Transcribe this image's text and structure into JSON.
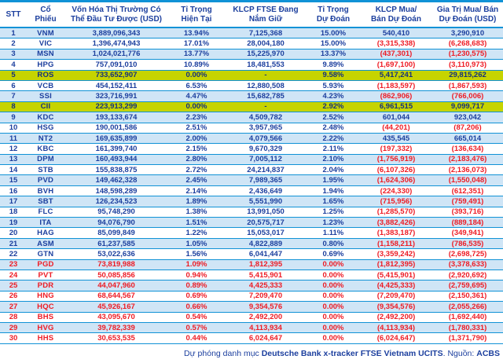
{
  "report": {
    "colors": {
      "text_blue": "#1c3f9e",
      "text_red": "#ee1c25",
      "grid_line_blue": "#1092d6",
      "row_alt_blue": "#cfe5f6",
      "highlight_yellow": "#c6d400"
    },
    "table": {
      "columns": [
        {
          "key": "stt",
          "label": "STT"
        },
        {
          "key": "ticker",
          "label": "Cổ\nPhiếu"
        },
        {
          "key": "market_cap",
          "label": "Vốn Hóa Thị Trường Có\nThể Đầu Tư Được (USD)"
        },
        {
          "key": "current_weight",
          "label": "Tỉ Trọng\nHiện Tại"
        },
        {
          "key": "shares_held",
          "label": "KLCP FTSE Đang\nNắm Giữ"
        },
        {
          "key": "pred_weight",
          "label": "Tỉ Trọng\nDự Đoán"
        },
        {
          "key": "pred_shares",
          "label": "KLCP Mua/\nBán Dự Đoán"
        },
        {
          "key": "pred_value",
          "label": "Gia Trị Mua/ Bán\nDự Đoán (USD)"
        }
      ],
      "rows": [
        {
          "stt": "1",
          "ticker": "VNM",
          "market_cap": "3,889,096,343",
          "current_weight": "13.94%",
          "shares_held": "7,125,368",
          "pred_weight": "15.00%",
          "pred_shares": "540,410",
          "pred_value": "3,290,910",
          "highlight": ""
        },
        {
          "stt": "2",
          "ticker": "VIC",
          "market_cap": "1,396,474,943",
          "current_weight": "17.01%",
          "shares_held": "28,004,180",
          "pred_weight": "15.00%",
          "pred_shares": "(3,315,338)",
          "pred_value": "(6,268,683)",
          "highlight": ""
        },
        {
          "stt": "3",
          "ticker": "MSN",
          "market_cap": "1,024,021,776",
          "current_weight": "13.77%",
          "shares_held": "15,225,970",
          "pred_weight": "13.37%",
          "pred_shares": "(437,301)",
          "pred_value": "(1,230,575)",
          "highlight": ""
        },
        {
          "stt": "4",
          "ticker": "HPG",
          "market_cap": "757,091,010",
          "current_weight": "10.89%",
          "shares_held": "18,481,553",
          "pred_weight": "9.89%",
          "pred_shares": "(1,697,100)",
          "pred_value": "(3,110,973)",
          "highlight": ""
        },
        {
          "stt": "5",
          "ticker": "ROS",
          "market_cap": "733,652,907",
          "current_weight": "0.00%",
          "shares_held": "-",
          "pred_weight": "9.58%",
          "pred_shares": "5,417,241",
          "pred_value": "29,815,262",
          "highlight": "yellow"
        },
        {
          "stt": "6",
          "ticker": "VCB",
          "market_cap": "454,152,411",
          "current_weight": "6.53%",
          "shares_held": "12,880,508",
          "pred_weight": "5.93%",
          "pred_shares": "(1,183,597)",
          "pred_value": "(1,867,593)",
          "highlight": ""
        },
        {
          "stt": "7",
          "ticker": "SSI",
          "market_cap": "323,716,991",
          "current_weight": "4.47%",
          "shares_held": "15,682,785",
          "pred_weight": "4.23%",
          "pred_shares": "(862,906)",
          "pred_value": "(766,006)",
          "highlight": ""
        },
        {
          "stt": "8",
          "ticker": "CII",
          "market_cap": "223,913,299",
          "current_weight": "0.00%",
          "shares_held": "-",
          "pred_weight": "2.92%",
          "pred_shares": "6,961,515",
          "pred_value": "9,099,717",
          "highlight": "yellow"
        },
        {
          "stt": "9",
          "ticker": "KDC",
          "market_cap": "193,133,674",
          "current_weight": "2.23%",
          "shares_held": "4,509,782",
          "pred_weight": "2.52%",
          "pred_shares": "601,044",
          "pred_value": "923,042",
          "highlight": ""
        },
        {
          "stt": "10",
          "ticker": "HSG",
          "market_cap": "190,001,586",
          "current_weight": "2.51%",
          "shares_held": "3,957,965",
          "pred_weight": "2.48%",
          "pred_shares": "(44,201)",
          "pred_value": "(87,206)",
          "highlight": ""
        },
        {
          "stt": "11",
          "ticker": "NT2",
          "market_cap": "169,635,899",
          "current_weight": "2.00%",
          "shares_held": "4,079,566",
          "pred_weight": "2.22%",
          "pred_shares": "435,545",
          "pred_value": "665,014",
          "highlight": ""
        },
        {
          "stt": "12",
          "ticker": "KBC",
          "market_cap": "161,399,740",
          "current_weight": "2.15%",
          "shares_held": "9,670,329",
          "pred_weight": "2.11%",
          "pred_shares": "(197,332)",
          "pred_value": "(136,634)",
          "highlight": ""
        },
        {
          "stt": "13",
          "ticker": "DPM",
          "market_cap": "160,493,944",
          "current_weight": "2.80%",
          "shares_held": "7,005,112",
          "pred_weight": "2.10%",
          "pred_shares": "(1,756,919)",
          "pred_value": "(2,183,476)",
          "highlight": ""
        },
        {
          "stt": "14",
          "ticker": "STB",
          "market_cap": "155,838,875",
          "current_weight": "2.72%",
          "shares_held": "24,214,837",
          "pred_weight": "2.04%",
          "pred_shares": "(6,107,326)",
          "pred_value": "(2,136,073)",
          "highlight": ""
        },
        {
          "stt": "15",
          "ticker": "PVD",
          "market_cap": "149,462,328",
          "current_weight": "2.45%",
          "shares_held": "7,989,365",
          "pred_weight": "1.95%",
          "pred_shares": "(1,624,306)",
          "pred_value": "(1,550,048)",
          "highlight": ""
        },
        {
          "stt": "16",
          "ticker": "BVH",
          "market_cap": "148,598,289",
          "current_weight": "2.14%",
          "shares_held": "2,436,649",
          "pred_weight": "1.94%",
          "pred_shares": "(224,330)",
          "pred_value": "(612,351)",
          "highlight": ""
        },
        {
          "stt": "17",
          "ticker": "SBT",
          "market_cap": "126,234,523",
          "current_weight": "1.89%",
          "shares_held": "5,551,990",
          "pred_weight": "1.65%",
          "pred_shares": "(715,956)",
          "pred_value": "(759,491)",
          "highlight": ""
        },
        {
          "stt": "18",
          "ticker": "FLC",
          "market_cap": "95,748,290",
          "current_weight": "1.38%",
          "shares_held": "13,991,050",
          "pred_weight": "1.25%",
          "pred_shares": "(1,285,570)",
          "pred_value": "(393,716)",
          "highlight": ""
        },
        {
          "stt": "19",
          "ticker": "ITA",
          "market_cap": "94,076,790",
          "current_weight": "1.51%",
          "shares_held": "20,575,717",
          "pred_weight": "1.23%",
          "pred_shares": "(3,882,426)",
          "pred_value": "(889,184)",
          "highlight": ""
        },
        {
          "stt": "20",
          "ticker": "HAG",
          "market_cap": "85,099,849",
          "current_weight": "1.22%",
          "shares_held": "15,053,017",
          "pred_weight": "1.11%",
          "pred_shares": "(1,383,187)",
          "pred_value": "(349,941)",
          "highlight": ""
        },
        {
          "stt": "21",
          "ticker": "ASM",
          "market_cap": "61,237,585",
          "current_weight": "1.05%",
          "shares_held": "4,822,889",
          "pred_weight": "0.80%",
          "pred_shares": "(1,158,211)",
          "pred_value": "(786,535)",
          "highlight": ""
        },
        {
          "stt": "22",
          "ticker": "GTN",
          "market_cap": "53,022,636",
          "current_weight": "1.56%",
          "shares_held": "6,041,447",
          "pred_weight": "0.69%",
          "pred_shares": "(3,359,242)",
          "pred_value": "(2,698,725)",
          "highlight": ""
        },
        {
          "stt": "23",
          "ticker": "PGD",
          "market_cap": "73,819,988",
          "current_weight": "1.09%",
          "shares_held": "1,812,395",
          "pred_weight": "0.00%",
          "pred_shares": "(1,812,395)",
          "pred_value": "(3,378,633)",
          "highlight": "red"
        },
        {
          "stt": "24",
          "ticker": "PVT",
          "market_cap": "50,085,856",
          "current_weight": "0.94%",
          "shares_held": "5,415,901",
          "pred_weight": "0.00%",
          "pred_shares": "(5,415,901)",
          "pred_value": "(2,920,692)",
          "highlight": "red"
        },
        {
          "stt": "25",
          "ticker": "PDR",
          "market_cap": "44,047,960",
          "current_weight": "0.89%",
          "shares_held": "4,425,333",
          "pred_weight": "0.00%",
          "pred_shares": "(4,425,333)",
          "pred_value": "(2,759,695)",
          "highlight": "red"
        },
        {
          "stt": "26",
          "ticker": "HNG",
          "market_cap": "68,644,567",
          "current_weight": "0.69%",
          "shares_held": "7,209,470",
          "pred_weight": "0.00%",
          "pred_shares": "(7,209,470)",
          "pred_value": "(2,150,361)",
          "highlight": "red"
        },
        {
          "stt": "27",
          "ticker": "HQC",
          "market_cap": "45,926,167",
          "current_weight": "0.66%",
          "shares_held": "9,354,576",
          "pred_weight": "0.00%",
          "pred_shares": "(9,354,576)",
          "pred_value": "(2,055,266)",
          "highlight": "red"
        },
        {
          "stt": "28",
          "ticker": "BHS",
          "market_cap": "43,095,670",
          "current_weight": "0.54%",
          "shares_held": "2,492,200",
          "pred_weight": "0.00%",
          "pred_shares": "(2,492,200)",
          "pred_value": "(1,692,440)",
          "highlight": "red"
        },
        {
          "stt": "29",
          "ticker": "HVG",
          "market_cap": "39,782,339",
          "current_weight": "0.57%",
          "shares_held": "4,113,934",
          "pred_weight": "0.00%",
          "pred_shares": "(4,113,934)",
          "pred_value": "(1,780,331)",
          "highlight": "red"
        },
        {
          "stt": "30",
          "ticker": "HHS",
          "market_cap": "30,653,535",
          "current_weight": "0.44%",
          "shares_held": "6,024,647",
          "pred_weight": "0.00%",
          "pred_shares": "(6,024,647)",
          "pred_value": "(1,371,790)",
          "highlight": "red"
        }
      ]
    },
    "footer": {
      "prefix": "Dự phóng danh mục ",
      "portfolio_name": "Deutsche Bank x-tracker FTSE Vietnam UCITS",
      "separator": ". Nguồn: ",
      "source": "ACBS"
    }
  }
}
